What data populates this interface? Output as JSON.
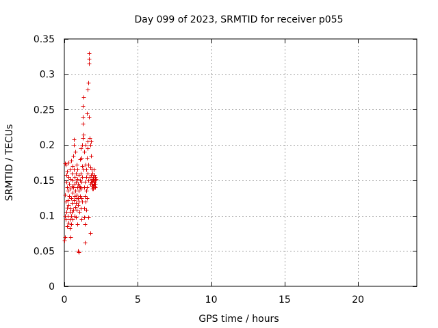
{
  "chart_data": {
    "type": "scatter",
    "title": "Day 099 of 2023, SRMTID for receiver p055",
    "xlabel": "GPS time / hours",
    "ylabel": "SRMTID / TECUs",
    "xlim": [
      0,
      24
    ],
    "ylim": [
      0,
      0.35
    ],
    "xticks": [
      0,
      5,
      10,
      15,
      20
    ],
    "xtick_labels": [
      "0",
      "5",
      "10",
      "15",
      "20"
    ],
    "yticks": [
      0,
      0.05,
      0.1,
      0.15,
      0.2,
      0.25,
      0.3,
      0.35
    ],
    "ytick_labels": [
      "0",
      "0.05",
      "0.1",
      "0.15",
      "0.2",
      "0.25",
      "0.3",
      "0.35"
    ],
    "grid": true,
    "marker": "+",
    "color": "#dd0000",
    "series": [
      {
        "name": "SRMTID",
        "points": [
          [
            0.02,
            0.065
          ],
          [
            0.03,
            0.07
          ],
          [
            0.05,
            0.1
          ],
          [
            0.05,
            0.13
          ],
          [
            0.06,
            0.174
          ],
          [
            0.08,
            0.095
          ],
          [
            0.1,
            0.12
          ],
          [
            0.1,
            0.172
          ],
          [
            0.12,
            0.105
          ],
          [
            0.13,
            0.148
          ],
          [
            0.15,
            0.158
          ],
          [
            0.17,
            0.085
          ],
          [
            0.18,
            0.111
          ],
          [
            0.2,
            0.14
          ],
          [
            0.2,
            0.162
          ],
          [
            0.22,
            0.1
          ],
          [
            0.23,
            0.122
          ],
          [
            0.25,
            0.135
          ],
          [
            0.26,
            0.155
          ],
          [
            0.28,
            0.09
          ],
          [
            0.3,
            0.115
          ],
          [
            0.3,
            0.175
          ],
          [
            0.32,
            0.128
          ],
          [
            0.33,
            0.145
          ],
          [
            0.35,
            0.105
          ],
          [
            0.35,
            0.165
          ],
          [
            0.37,
            0.082
          ],
          [
            0.38,
            0.095
          ],
          [
            0.4,
            0.07
          ],
          [
            0.4,
            0.138
          ],
          [
            0.42,
            0.11
          ],
          [
            0.43,
            0.152
          ],
          [
            0.45,
            0.125
          ],
          [
            0.45,
            0.178
          ],
          [
            0.47,
            0.1
          ],
          [
            0.48,
            0.088
          ],
          [
            0.5,
            0.142
          ],
          [
            0.5,
            0.16
          ],
          [
            0.52,
            0.118
          ],
          [
            0.53,
            0.105
          ],
          [
            0.55,
            0.17
          ],
          [
            0.55,
            0.132
          ],
          [
            0.57,
            0.095
          ],
          [
            0.58,
            0.15
          ],
          [
            0.6,
            0.108
          ],
          [
            0.6,
            0.185
          ],
          [
            0.62,
            0.14
          ],
          [
            0.63,
            0.122
          ],
          [
            0.65,
            0.2
          ],
          [
            0.65,
            0.165
          ],
          [
            0.67,
            0.208
          ],
          [
            0.68,
            0.1
          ],
          [
            0.7,
            0.128
          ],
          [
            0.7,
            0.155
          ],
          [
            0.72,
            0.145
          ],
          [
            0.73,
            0.112
          ],
          [
            0.75,
            0.135
          ],
          [
            0.75,
            0.19
          ],
          [
            0.77,
            0.118
          ],
          [
            0.78,
            0.16
          ],
          [
            0.8,
            0.098
          ],
          [
            0.8,
            0.148
          ],
          [
            0.82,
            0.125
          ],
          [
            0.83,
            0.172
          ],
          [
            0.85,
            0.13
          ],
          [
            0.85,
            0.108
          ],
          [
            0.87,
            0.152
          ],
          [
            0.88,
            0.088
          ],
          [
            0.9,
            0.14
          ],
          [
            0.9,
            0.165
          ],
          [
            0.92,
            0.115
          ],
          [
            0.93,
            0.125
          ],
          [
            0.95,
            0.145
          ],
          [
            0.95,
            0.05
          ],
          [
            0.97,
            0.135
          ],
          [
            0.98,
            0.048
          ],
          [
            1.0,
            0.12
          ],
          [
            1.0,
            0.158
          ],
          [
            1.02,
            0.142
          ],
          [
            1.03,
            0.105
          ],
          [
            1.05,
            0.14
          ],
          [
            1.05,
            0.18
          ],
          [
            1.07,
            0.128
          ],
          [
            1.08,
            0.15
          ],
          [
            1.1,
            0.195
          ],
          [
            1.1,
            0.11
          ],
          [
            1.12,
            0.16
          ],
          [
            1.13,
            0.138
          ],
          [
            1.15,
            0.182
          ],
          [
            1.15,
            0.125
          ],
          [
            1.17,
            0.095
          ],
          [
            1.18,
            0.148
          ],
          [
            1.2,
            0.2
          ],
          [
            1.2,
            0.17
          ],
          [
            1.22,
            0.155
          ],
          [
            1.23,
            0.12
          ],
          [
            1.25,
            0.21
          ],
          [
            1.25,
            0.23
          ],
          [
            1.27,
            0.24
          ],
          [
            1.28,
            0.255
          ],
          [
            1.3,
            0.268
          ],
          [
            1.3,
            0.165
          ],
          [
            1.32,
            0.215
          ],
          [
            1.33,
            0.11
          ],
          [
            1.35,
            0.14
          ],
          [
            1.35,
            0.098
          ],
          [
            1.37,
            0.19
          ],
          [
            1.38,
            0.128
          ],
          [
            1.4,
            0.062
          ],
          [
            1.4,
            0.088
          ],
          [
            1.42,
            0.148
          ],
          [
            1.43,
            0.172
          ],
          [
            1.45,
            0.12
          ],
          [
            1.45,
            0.2
          ],
          [
            1.47,
            0.135
          ],
          [
            1.48,
            0.165
          ],
          [
            1.5,
            0.108
          ],
          [
            1.5,
            0.155
          ],
          [
            1.52,
            0.182
          ],
          [
            1.53,
            0.125
          ],
          [
            1.55,
            0.245
          ],
          [
            1.55,
            0.14
          ],
          [
            1.57,
            0.16
          ],
          [
            1.58,
            0.195
          ],
          [
            1.6,
            0.278
          ],
          [
            1.6,
            0.205
          ],
          [
            1.62,
            0.15
          ],
          [
            1.63,
            0.098
          ],
          [
            1.65,
            0.288
          ],
          [
            1.65,
            0.172
          ],
          [
            1.67,
            0.33
          ],
          [
            1.68,
            0.322
          ],
          [
            1.7,
            0.315
          ],
          [
            1.7,
            0.24
          ],
          [
            1.72,
            0.21
          ],
          [
            1.73,
            0.155
          ],
          [
            1.75,
            0.075
          ],
          [
            1.75,
            0.145
          ],
          [
            1.77,
            0.2
          ],
          [
            1.78,
            0.168
          ],
          [
            1.8,
            0.148
          ],
          [
            1.8,
            0.185
          ],
          [
            1.82,
            0.205
          ],
          [
            1.83,
            0.158
          ],
          [
            1.85,
            0.152
          ],
          [
            1.85,
            0.142
          ],
          [
            1.87,
            0.165
          ],
          [
            1.88,
            0.15
          ],
          [
            1.9,
            0.138
          ],
          [
            1.9,
            0.145
          ],
          [
            1.92,
            0.16
          ],
          [
            1.93,
            0.148
          ],
          [
            1.95,
            0.155
          ],
          [
            1.95,
            0.142
          ],
          [
            1.97,
            0.15
          ],
          [
            1.98,
            0.138
          ],
          [
            2.0,
            0.145
          ],
          [
            2.0,
            0.165
          ],
          [
            2.02,
            0.152
          ],
          [
            2.03,
            0.14
          ],
          [
            2.05,
            0.158
          ],
          [
            2.05,
            0.148
          ],
          [
            2.07,
            0.142
          ],
          [
            2.08,
            0.15
          ],
          [
            2.1,
            0.145
          ],
          [
            2.1,
            0.155
          ],
          [
            2.12,
            0.14
          ],
          [
            2.15,
            0.152
          ]
        ]
      }
    ]
  }
}
